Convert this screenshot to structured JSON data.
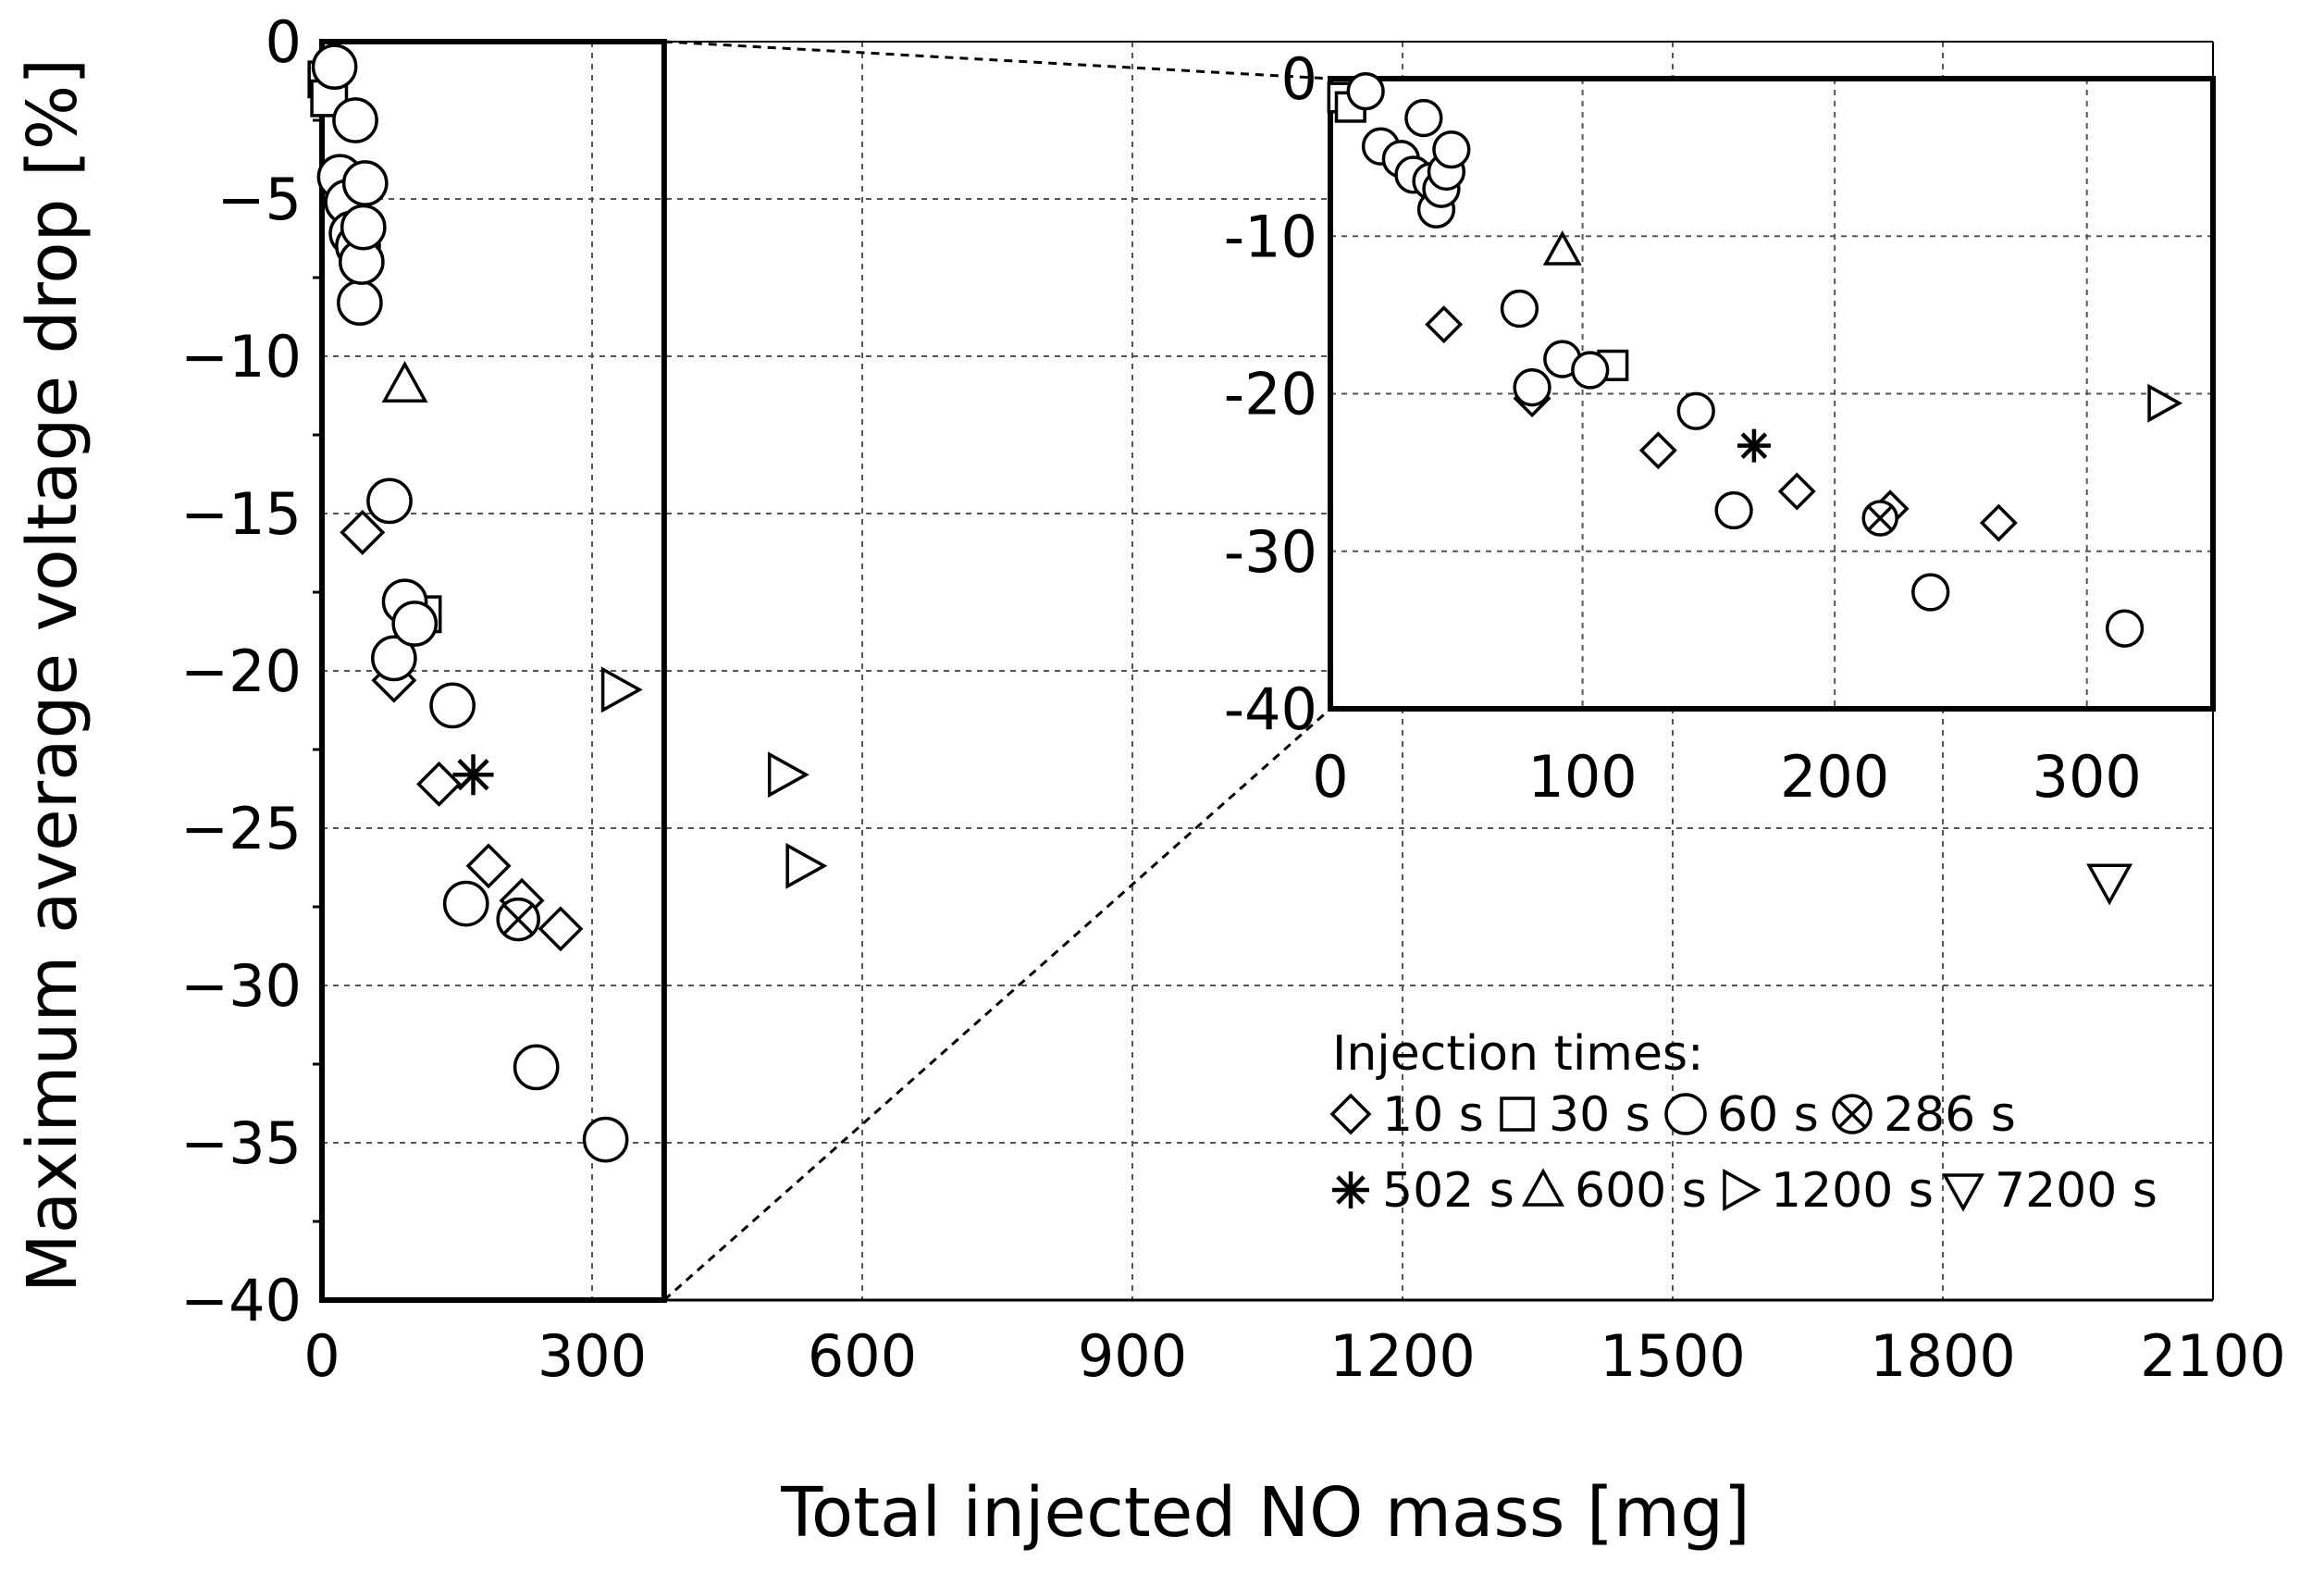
{
  "chart_data": [
    {
      "type": "scatter",
      "title": "",
      "xlabel": "Total injected NO mass [mg]",
      "ylabel": "Maximum average voltage drop [%]",
      "xlim": [
        0,
        2100
      ],
      "ylim": [
        -40,
        0
      ],
      "xticks": [
        0,
        300,
        600,
        900,
        1200,
        1500,
        1800,
        2100
      ],
      "yticks": [
        0,
        -5,
        -10,
        -15,
        -20,
        -25,
        -30,
        -35,
        -40
      ],
      "xtick_labels": [
        "0",
        "300",
        "600",
        "900",
        "1200",
        "1500",
        "1800",
        "2100"
      ],
      "ytick_labels": [
        "0",
        "−5",
        "−10",
        "−15",
        "−20",
        "−25",
        "−30",
        "−35",
        "−40"
      ],
      "grid": true,
      "legend_title": "Injection times:",
      "legend_placement": "bottom-right",
      "series": [
        {
          "name": "10 s",
          "marker": "diamond",
          "points": [
            [
              45,
              -15.6
            ],
            [
              80,
              -20.3
            ],
            [
              130,
              -23.6
            ],
            [
              185,
              -26.2
            ],
            [
              222,
              -27.3
            ],
            [
              265,
              -28.2
            ]
          ]
        },
        {
          "name": "30 s",
          "marker": "square",
          "points": [
            [
              5,
              -1.2
            ],
            [
              8,
              -1.8
            ],
            [
              112,
              -18.2
            ]
          ]
        },
        {
          "name": "60 s",
          "marker": "circle",
          "points": [
            [
              14,
              -0.8
            ],
            [
              20,
              -4.3
            ],
            [
              28,
              -5.1
            ],
            [
              33,
              -6.1
            ],
            [
              37,
              -2.5
            ],
            [
              40,
              -6.5
            ],
            [
              42,
              -8.3
            ],
            [
              44,
              -7.0
            ],
            [
              46,
              -5.9
            ],
            [
              48,
              -4.5
            ],
            [
              75,
              -14.6
            ],
            [
              80,
              -19.6
            ],
            [
              92,
              -17.8
            ],
            [
              103,
              -18.5
            ],
            [
              145,
              -21.1
            ],
            [
              160,
              -27.4
            ],
            [
              238,
              -32.6
            ],
            [
              315,
              -34.9
            ]
          ]
        },
        {
          "name": "286 s",
          "marker": "circle-x",
          "points": [
            [
              218,
              -27.9
            ]
          ]
        },
        {
          "name": "502 s",
          "marker": "asterisk",
          "points": [
            [
              168,
              -23.3
            ]
          ]
        },
        {
          "name": "600 s",
          "marker": "triangle-up",
          "points": [
            [
              92,
              -10.9
            ]
          ]
        },
        {
          "name": "1200 s",
          "marker": "triangle-right",
          "points": [
            [
              330,
              -20.6
            ],
            [
              515,
              -23.3
            ],
            [
              535,
              -26.2
            ]
          ]
        },
        {
          "name": "7200 s",
          "marker": "triangle-down",
          "points": [
            [
              1985,
              -26.7
            ]
          ]
        }
      ]
    },
    {
      "type": "scatter",
      "title": "",
      "xlabel": "",
      "ylabel": "",
      "xlim": [
        0,
        350
      ],
      "ylim": [
        -40,
        0
      ],
      "xticks": [
        0,
        100,
        200,
        300
      ],
      "yticks": [
        0,
        -10,
        -20,
        -30,
        -40
      ],
      "xtick_labels": [
        "0",
        "100",
        "200",
        "300"
      ],
      "ytick_labels": [
        "0",
        "-10",
        "-20",
        "-30",
        "-40"
      ],
      "grid": true,
      "note_zoom_of_main_x_range": [
        0,
        380
      ],
      "series_ref": "same as main chart, points with x <= 350"
    }
  ],
  "legend": {
    "title": "Injection times:",
    "row1": [
      "10 s",
      "30 s",
      "60 s",
      "286 s"
    ],
    "row2": [
      "502 s",
      "600 s",
      "1200 s",
      "7200 s"
    ]
  }
}
